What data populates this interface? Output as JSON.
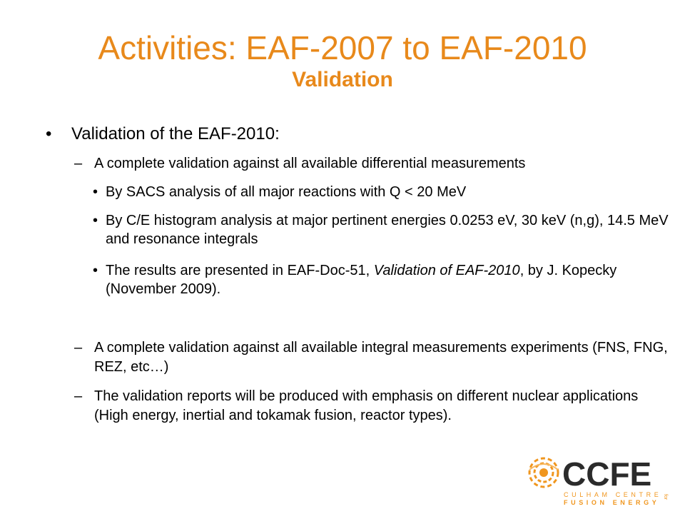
{
  "slide": {
    "title": "Activities: EAF-2007 to EAF-2010",
    "subtitle": "Validation"
  },
  "content": {
    "main_bullet": "Validation of the EAF-2010:",
    "sub1": "A complete validation against all available differential measurements",
    "bullets": [
      "By SACS analysis of all major reactions with Q < 20 MeV",
      "By C/E histogram analysis at major pertinent energies 0.0253 eV, 30 keV (n,g), 14.5 MeV and resonance integrals"
    ],
    "bullet3": {
      "prefix": "The results are presented in EAF-Doc-51, ",
      "italic": "Validation of EAF-2010",
      "suffix": ", by J. Kopecky (November 2009)."
    },
    "sub2": "A complete validation against all available integral measurements experiments (FNS, FNG, REZ, etc…)",
    "sub3": "The validation reports will be produced with emphasis on different nuclear applications (High energy, inertial and tokamak fusion, reactor types)."
  },
  "logo": {
    "name": "CCFE",
    "line1": "CULHAM CENTRE",
    "line2": "FUSION ENERGY",
    "side": "for",
    "accent_color": "#f0961e",
    "dark_color": "#2b2b2b"
  }
}
